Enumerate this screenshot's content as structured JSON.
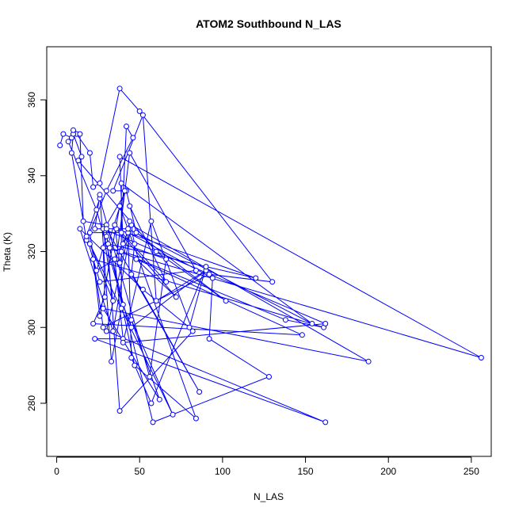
{
  "chart_data": {
    "type": "line",
    "title": "ATOM2 Southbound N_LAS",
    "xlabel": "N_LAS",
    "ylabel": "Theta (K)",
    "xlim": [
      -6,
      262
    ],
    "ylim": [
      266,
      374
    ],
    "xticks": [
      0,
      50,
      100,
      150,
      200,
      250
    ],
    "yticks": [
      280,
      300,
      320,
      340,
      360
    ],
    "grid": false,
    "legend": "none",
    "series_color": "#0000ff",
    "series": [
      {
        "x": [
          2,
          4,
          9,
          12,
          20,
          22,
          26,
          38,
          50,
          130,
          92,
          28,
          20,
          39,
          42,
          46,
          30,
          18,
          9,
          10,
          15,
          13,
          60,
          102,
          48,
          42,
          30,
          16,
          14,
          10,
          7,
          24,
          40,
          45,
          90,
          60,
          52,
          34,
          41,
          31,
          120,
          36,
          72,
          48,
          148,
          22,
          29,
          28,
          38,
          138,
          161,
          22,
          26,
          38,
          84,
          47,
          32,
          39,
          256,
          38,
          40,
          66,
          56,
          26,
          18,
          26,
          84,
          44,
          36,
          24,
          30,
          58,
          128,
          92,
          94,
          43,
          35,
          40,
          23,
          162,
          30,
          44,
          23,
          26,
          33,
          39,
          39,
          154,
          43,
          45,
          57,
          90,
          80,
          52,
          14,
          34,
          45,
          188,
          28,
          62,
          45,
          70,
          20,
          34,
          28,
          162,
          40,
          57,
          82,
          38,
          30,
          86,
          45,
          47,
          44,
          38,
          35,
          66,
          44
        ],
        "y": [
          348,
          351,
          350,
          351,
          346,
          337,
          338,
          363,
          357,
          312,
          314,
          300,
          325,
          325,
          353,
          350,
          336,
          323,
          346,
          351,
          345,
          344,
          320,
          307,
          325,
          336,
          327,
          328,
          351,
          352,
          349,
          331,
          306,
          300,
          315,
          307,
          356,
          336,
          336,
          322,
          313,
          326,
          308,
          318,
          298,
          301,
          308,
          321,
          320,
          302,
          300,
          318,
          303,
          332,
          276,
          290,
          321,
          320,
          292,
          345,
          322,
          318,
          287,
          334,
          324,
          312,
          315,
          346,
          318,
          315,
          324,
          275,
          287,
          297,
          313,
          325,
          318,
          297,
          297,
          275,
          299,
          326,
          326,
          335,
          291,
          305,
          338,
          301,
          326,
          292,
          280,
          316,
          300,
          310,
          326,
          299,
          327,
          291,
          305,
          281,
          302,
          277,
          322,
          307,
          326,
          301,
          296,
          328,
          299,
          278,
          326,
          283,
          314,
          322,
          328,
          317,
          327,
          312,
          332
        ]
      }
    ]
  }
}
